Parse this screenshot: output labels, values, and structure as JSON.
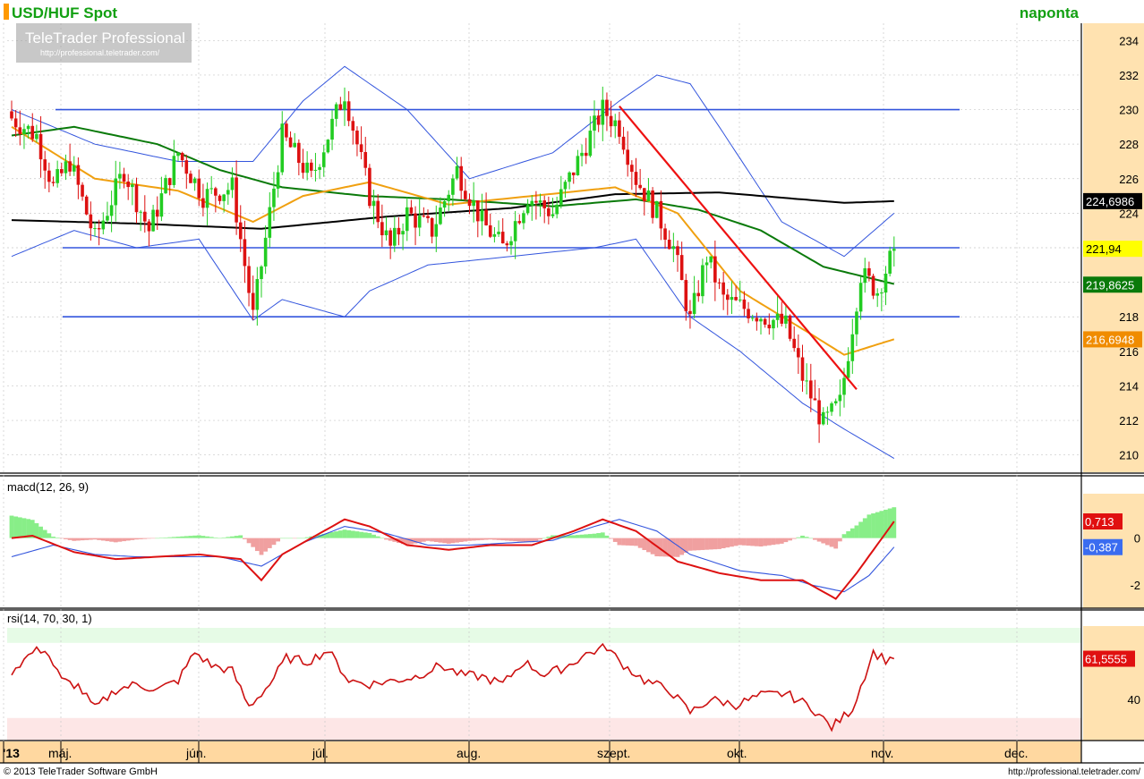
{
  "header": {
    "title": "USD/HUF Spot",
    "interval": "naponta",
    "watermark_brand": "TeleTrader Professional",
    "watermark_url": "http://professional.teletrader.com/"
  },
  "footer": {
    "copyright": "© 2013 TeleTrader Software GmbH",
    "url": "http://professional.teletrader.com/"
  },
  "colors": {
    "up_candle": "#22cc22",
    "down_candle": "#dd1111",
    "hline": "#3355dd",
    "bollinger": "#3355dd",
    "sma_long": "#000000",
    "sma_mid": "#0a7a0a",
    "sma_short": "#f0a010",
    "trendline": "#ee1111",
    "macd_line": "#dd1111",
    "signal_line": "#3355dd",
    "hist_pos": "#88ee88",
    "hist_neg": "#f0a0a0",
    "rsi_line": "#cc1111",
    "axis_strip": "#ffd8a0"
  },
  "chart_data": [
    {
      "type": "candlestick",
      "title": "USD/HUF Spot",
      "ylim": [
        209,
        235
      ],
      "y_ticks": [
        "234",
        "232",
        "230",
        "228",
        "226",
        "224",
        "222",
        "220",
        "218",
        "216",
        "214",
        "212",
        "210"
      ],
      "x_months": [
        "'13",
        "máj.",
        "jún.",
        "júl.",
        "aug.",
        "szept.",
        "okt.",
        "nov.",
        "dec."
      ],
      "horizontal_lines": [
        230.0,
        222.0,
        218.0
      ],
      "trendline": {
        "from": {
          "x": 146,
          "y": 230.2
        },
        "to": {
          "x": 203,
          "y": 213.8
        }
      },
      "last_values": [
        {
          "label": "224,6986",
          "value": 224.6986,
          "color": "#000000",
          "text_color": "#ffffff"
        },
        {
          "label": "221,94",
          "value": 221.94,
          "color": "#ffff00",
          "text_color": "#000000"
        },
        {
          "label": "219,8625",
          "value": 219.8625,
          "color": "#0a7a0a",
          "text_color": "#ffffff"
        },
        {
          "label": "216,6948",
          "value": 216.6948,
          "color": "#f08c00",
          "text_color": "#ffffff"
        }
      ],
      "anchors_close": [
        [
          0,
          229.5
        ],
        [
          6,
          228.5
        ],
        [
          10,
          225.5
        ],
        [
          14,
          227.0
        ],
        [
          20,
          222.5
        ],
        [
          27,
          226.5
        ],
        [
          33,
          223.0
        ],
        [
          40,
          227.5
        ],
        [
          46,
          225.0
        ],
        [
          53,
          225.5
        ],
        [
          58,
          218.0
        ],
        [
          65,
          228.5
        ],
        [
          72,
          226.0
        ],
        [
          80,
          231.0
        ],
        [
          86,
          225.0
        ],
        [
          91,
          222.0
        ],
        [
          95,
          224.0
        ],
        [
          101,
          223.0
        ],
        [
          107,
          226.5
        ],
        [
          113,
          223.5
        ],
        [
          118,
          222.0
        ],
        [
          124,
          225.0
        ],
        [
          130,
          224.0
        ],
        [
          137,
          227.5
        ],
        [
          142,
          230.0
        ],
        [
          146,
          229.0
        ],
        [
          150,
          226.0
        ],
        [
          155,
          224.0
        ],
        [
          159,
          222.0
        ],
        [
          163,
          217.8
        ],
        [
          167,
          221.5
        ],
        [
          171,
          219.0
        ],
        [
          176,
          218.5
        ],
        [
          181,
          218.0
        ],
        [
          186,
          217.5
        ],
        [
          190,
          214.5
        ],
        [
          195,
          211.8
        ],
        [
          199,
          213.0
        ],
        [
          204,
          220.5
        ],
        [
          208,
          219.5
        ],
        [
          212,
          221.9
        ]
      ],
      "sma_long": [
        [
          0,
          223.6
        ],
        [
          30,
          223.4
        ],
        [
          60,
          223.1
        ],
        [
          90,
          223.8
        ],
        [
          120,
          224.3
        ],
        [
          145,
          225.1
        ],
        [
          170,
          225.2
        ],
        [
          200,
          224.6
        ],
        [
          212,
          224.7
        ]
      ],
      "sma_mid": [
        [
          0,
          228.5
        ],
        [
          15,
          229.0
        ],
        [
          35,
          228.0
        ],
        [
          50,
          226.5
        ],
        [
          65,
          225.5
        ],
        [
          85,
          225.0
        ],
        [
          105,
          224.8
        ],
        [
          130,
          224.4
        ],
        [
          150,
          224.8
        ],
        [
          165,
          224.2
        ],
        [
          180,
          223.0
        ],
        [
          195,
          220.9
        ],
        [
          212,
          219.9
        ]
      ],
      "sma_short": [
        [
          0,
          229.0
        ],
        [
          20,
          226.0
        ],
        [
          40,
          225.3
        ],
        [
          58,
          223.5
        ],
        [
          70,
          225.0
        ],
        [
          86,
          225.8
        ],
        [
          105,
          224.5
        ],
        [
          125,
          225.0
        ],
        [
          145,
          225.5
        ],
        [
          160,
          224.0
        ],
        [
          175,
          219.5
        ],
        [
          192,
          217.0
        ],
        [
          200,
          215.8
        ],
        [
          212,
          216.7
        ]
      ],
      "bollinger_upper": [
        [
          0,
          230.0
        ],
        [
          20,
          228.0
        ],
        [
          40,
          227.0
        ],
        [
          58,
          227.0
        ],
        [
          70,
          230.5
        ],
        [
          80,
          232.5
        ],
        [
          95,
          230.0
        ],
        [
          110,
          226.0
        ],
        [
          130,
          227.5
        ],
        [
          146,
          230.5
        ],
        [
          155,
          232.0
        ],
        [
          163,
          231.5
        ],
        [
          170,
          229.0
        ],
        [
          185,
          223.5
        ],
        [
          200,
          221.5
        ],
        [
          212,
          224.0
        ]
      ],
      "bollinger_lower": [
        [
          0,
          221.5
        ],
        [
          15,
          223.0
        ],
        [
          30,
          222.0
        ],
        [
          45,
          222.5
        ],
        [
          58,
          217.8
        ],
        [
          65,
          219.0
        ],
        [
          80,
          218.0
        ],
        [
          86,
          219.5
        ],
        [
          100,
          221.0
        ],
        [
          120,
          221.5
        ],
        [
          140,
          222.0
        ],
        [
          150,
          222.5
        ],
        [
          163,
          218.0
        ],
        [
          175,
          216.0
        ],
        [
          190,
          213.0
        ],
        [
          200,
          211.5
        ],
        [
          212,
          209.8
        ]
      ]
    },
    {
      "type": "line",
      "title": "macd(12, 26, 9)",
      "ylim": [
        -3,
        1.9
      ],
      "y_ticks": [
        "0",
        "-2"
      ],
      "series": [
        {
          "name": "macd",
          "last": "0,713",
          "anchors": [
            [
              0,
              0.0
            ],
            [
              5,
              0.1
            ],
            [
              15,
              -0.6
            ],
            [
              25,
              -0.9
            ],
            [
              35,
              -0.8
            ],
            [
              45,
              -0.7
            ],
            [
              55,
              -0.9
            ],
            [
              60,
              -1.8
            ],
            [
              65,
              -0.7
            ],
            [
              75,
              0.3
            ],
            [
              80,
              0.8
            ],
            [
              86,
              0.5
            ],
            [
              95,
              -0.3
            ],
            [
              105,
              -0.5
            ],
            [
              115,
              -0.3
            ],
            [
              125,
              -0.3
            ],
            [
              135,
              0.3
            ],
            [
              142,
              0.8
            ],
            [
              150,
              0.3
            ],
            [
              160,
              -1.0
            ],
            [
              170,
              -1.5
            ],
            [
              180,
              -1.8
            ],
            [
              190,
              -1.8
            ],
            [
              198,
              -2.6
            ],
            [
              203,
              -1.5
            ],
            [
              212,
              0.713
            ]
          ]
        },
        {
          "name": "signal",
          "last": "-0,387",
          "anchors": [
            [
              0,
              -0.8
            ],
            [
              10,
              -0.3
            ],
            [
              20,
              -0.7
            ],
            [
              30,
              -0.8
            ],
            [
              40,
              -0.8
            ],
            [
              50,
              -0.8
            ],
            [
              60,
              -1.2
            ],
            [
              70,
              -0.2
            ],
            [
              80,
              0.5
            ],
            [
              90,
              0.2
            ],
            [
              100,
              -0.3
            ],
            [
              110,
              -0.3
            ],
            [
              120,
              -0.2
            ],
            [
              130,
              -0.1
            ],
            [
              140,
              0.5
            ],
            [
              146,
              0.8
            ],
            [
              155,
              0.3
            ],
            [
              163,
              -0.7
            ],
            [
              175,
              -1.4
            ],
            [
              185,
              -1.6
            ],
            [
              192,
              -2.0
            ],
            [
              200,
              -2.3
            ],
            [
              206,
              -1.6
            ],
            [
              212,
              -0.387
            ]
          ]
        }
      ]
    },
    {
      "type": "line",
      "title": "rsi(14, 70, 30, 1)",
      "ylim": [
        18,
        78
      ],
      "y_ticks": [
        "40"
      ],
      "bands": {
        "upper": 70,
        "lower": 30
      },
      "series": [
        {
          "name": "rsi",
          "last": "61,5555",
          "anchors": [
            [
              0,
              55
            ],
            [
              5,
              65
            ],
            [
              8,
              67
            ],
            [
              12,
              50
            ],
            [
              16,
              47
            ],
            [
              20,
              35
            ],
            [
              25,
              45
            ],
            [
              30,
              48
            ],
            [
              35,
              45
            ],
            [
              40,
              50
            ],
            [
              44,
              65
            ],
            [
              48,
              58
            ],
            [
              53,
              55
            ],
            [
              57,
              36
            ],
            [
              62,
              48
            ],
            [
              66,
              62
            ],
            [
              71,
              60
            ],
            [
              76,
              66
            ],
            [
              81,
              50
            ],
            [
              86,
              48
            ],
            [
              92,
              50
            ],
            [
              97,
              52
            ],
            [
              103,
              58
            ],
            [
              108,
              53
            ],
            [
              113,
              52
            ],
            [
              118,
              48
            ],
            [
              123,
              60
            ],
            [
              128,
              53
            ],
            [
              133,
              57
            ],
            [
              138,
              64
            ],
            [
              143,
              68
            ],
            [
              146,
              60
            ],
            [
              152,
              50
            ],
            [
              158,
              45
            ],
            [
              163,
              33
            ],
            [
              168,
              40
            ],
            [
              174,
              37
            ],
            [
              180,
              42
            ],
            [
              186,
              43
            ],
            [
              192,
              36
            ],
            [
              197,
              25
            ],
            [
              202,
              35
            ],
            [
              207,
              65
            ],
            [
              210,
              61
            ],
            [
              212,
              62
            ]
          ]
        }
      ]
    }
  ]
}
